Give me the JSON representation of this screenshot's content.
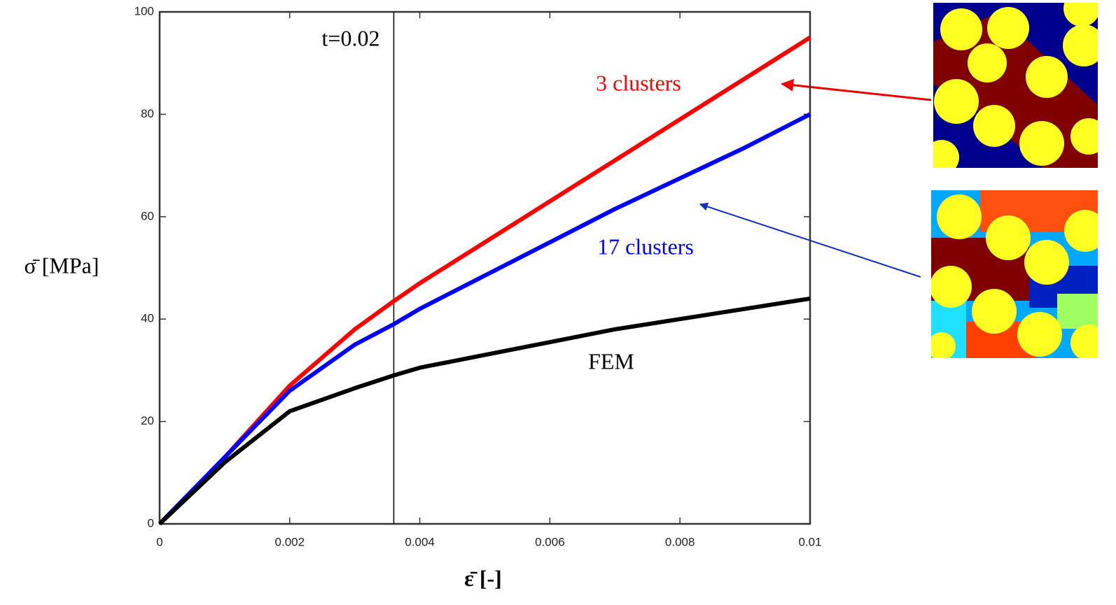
{
  "chart_data": {
    "type": "line",
    "x_label": "ε̄ [-]",
    "y_label": "σ̄ [MPa]",
    "x": [
      0,
      0.001,
      0.002,
      0.003,
      0.0036,
      0.004,
      0.005,
      0.006,
      0.007,
      0.008,
      0.009,
      0.01
    ],
    "series": [
      {
        "name": "3 clusters",
        "color": "#ff0000",
        "values": [
          0,
          13,
          27,
          38,
          43.5,
          47,
          55,
          63,
          71,
          79,
          87,
          95
        ]
      },
      {
        "name": "17 clusters",
        "color": "#0000ff",
        "values": [
          0,
          13,
          26,
          35,
          39,
          42,
          48.5,
          55,
          61.5,
          67.5,
          73.5,
          80
        ]
      },
      {
        "name": "FEM",
        "color": "#000000",
        "values": [
          0,
          12,
          22,
          26.5,
          29,
          30.5,
          33,
          35.5,
          38,
          40,
          42,
          44
        ]
      }
    ],
    "xlim": [
      0,
      0.01
    ],
    "xticks": [
      0,
      0.002,
      0.004,
      0.006,
      0.008,
      0.01
    ],
    "ylim": [
      0,
      100
    ],
    "yticks": [
      0,
      20,
      40,
      60,
      80,
      100
    ],
    "annotations": [
      {
        "text": "t=0.02",
        "x": 0.0036
      }
    ]
  }
}
